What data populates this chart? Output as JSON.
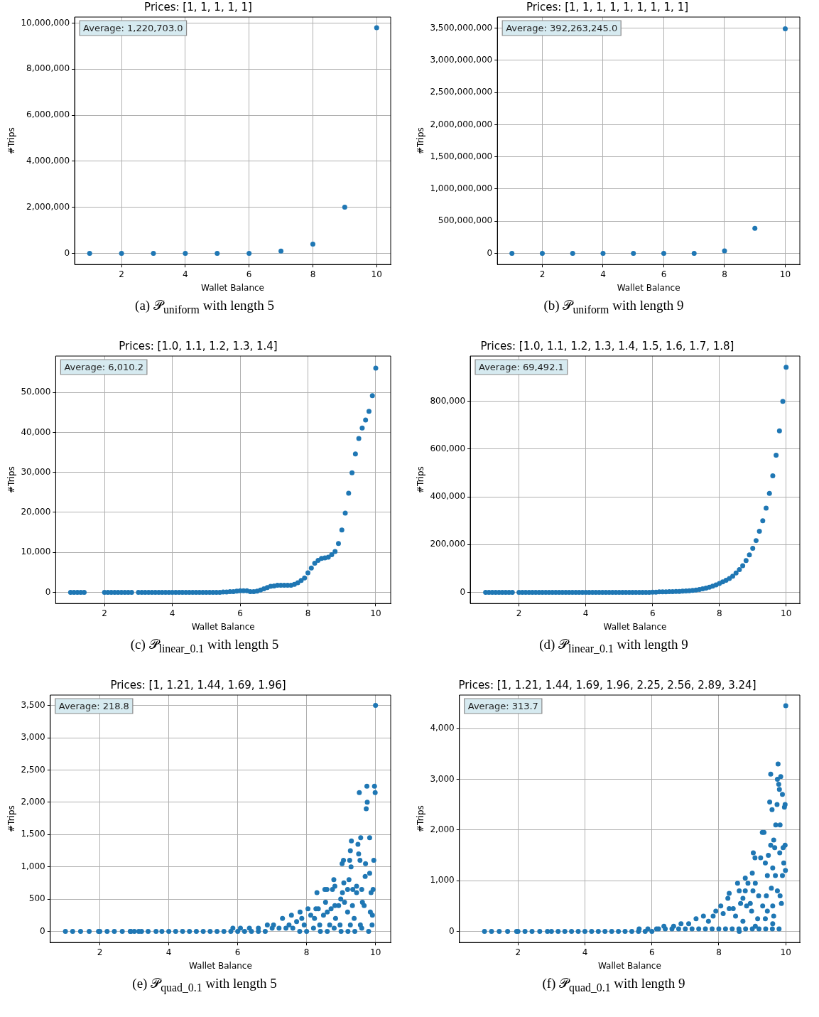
{
  "chart_data": [
    {
      "type": "scatter",
      "title": "Prices: [1, 1, 1, 1, 1]",
      "xlabel": "Wallet Balance",
      "ylabel": "#Trips",
      "color": "#1f77b4",
      "marker": "circle",
      "grid": true,
      "x": [
        1,
        2,
        3,
        4,
        5,
        6,
        7,
        8,
        9,
        10
      ],
      "values": [
        0,
        0,
        0,
        0,
        0,
        0,
        100000,
        400000,
        2000000,
        9800000
      ],
      "xlim": [
        0.53,
        10.44
      ],
      "xticks": [
        2,
        4,
        6,
        8,
        10
      ],
      "ylim": [
        -488000,
        10260000
      ],
      "yticks": [
        {
          "value": 0,
          "label": "0"
        },
        {
          "value": 2000000,
          "label": "2,000,000"
        },
        {
          "value": 4000000,
          "label": "4,000,000"
        },
        {
          "value": 6000000,
          "label": "6,000,000"
        },
        {
          "value": 8000000,
          "label": "8,000,000"
        },
        {
          "value": 10000000,
          "label": "10,000,000"
        }
      ],
      "annotations": [
        "Average: 1,220,703.0",
        "(a) 𝒫$_{uniform}$ with length 5"
      ]
    },
    {
      "type": "scatter",
      "title": "Prices: [1, 1, 1, 1, 1, 1, 1, 1, 1]",
      "xlabel": "Wallet Balance",
      "ylabel": "#Trips",
      "color": "#1f77b4",
      "marker": "circle",
      "grid": true,
      "x": [
        1,
        2,
        3,
        4,
        5,
        6,
        7,
        8,
        9,
        10
      ],
      "values": [
        0,
        0,
        0,
        0,
        0,
        0,
        0,
        40000000,
        390000000,
        3490000000
      ],
      "xlim": [
        0.52,
        10.48
      ],
      "xticks": [
        2,
        4,
        6,
        8,
        10
      ],
      "ylim": [
        -173000000,
        3672000000
      ],
      "yticks": [
        {
          "value": 0,
          "label": "0"
        },
        {
          "value": 500000000,
          "label": "500,000,000"
        },
        {
          "value": 1000000000,
          "label": "1,000,000,000"
        },
        {
          "value": 1500000000,
          "label": "1,500,000,000"
        },
        {
          "value": 2000000000,
          "label": "2,000,000,000"
        },
        {
          "value": 2500000000,
          "label": "2,500,000,000"
        },
        {
          "value": 3000000000,
          "label": "3,000,000,000"
        },
        {
          "value": 3500000000,
          "label": "3,500,000,000"
        }
      ],
      "annotations": [
        "Average: 392,263,245.0",
        "(b) 𝒫$_{uniform}$ with length 9"
      ]
    },
    {
      "type": "scatter",
      "title": "Prices: [1.0, 1.1, 1.2, 1.3, 1.4]",
      "xlabel": "Wallet Balance",
      "ylabel": "#Trips",
      "color": "#1f77b4",
      "marker": "circle",
      "grid": true,
      "x": [
        1,
        1.1,
        1.2,
        1.3,
        1.4,
        2,
        2.1,
        2.2,
        2.3,
        2.4,
        2.5,
        2.6,
        2.7,
        2.8,
        3,
        3.1,
        3.2,
        3.3,
        3.4,
        3.5,
        3.6,
        3.7,
        3.8,
        3.9,
        4,
        4.1,
        4.2,
        4.3,
        4.4,
        4.5,
        4.6,
        4.7,
        4.8,
        4.9,
        5,
        5.1,
        5.2,
        5.3,
        5.4,
        5.5,
        5.6,
        5.7,
        5.8,
        5.9,
        6,
        6.1,
        6.2,
        6.3,
        6.4,
        6.5,
        6.6,
        6.7,
        6.8,
        6.9,
        7,
        7.1,
        7.2,
        7.3,
        7.4,
        7.5,
        7.6,
        7.7,
        7.8,
        7.9,
        8,
        8.1,
        8.2,
        8.3,
        8.4,
        8.5,
        8.6,
        8.7,
        8.8,
        8.9,
        9,
        9.1,
        9.2,
        9.3,
        9.4,
        9.5,
        9.6,
        9.7,
        9.8,
        9.9,
        10
      ],
      "values": [
        0,
        0,
        0,
        0,
        0,
        0,
        0,
        0,
        0,
        0,
        0,
        0,
        0,
        0,
        0,
        0,
        0,
        0,
        0,
        0,
        0,
        0,
        0,
        0,
        0,
        0,
        0,
        0,
        0,
        0,
        0,
        0,
        0,
        0,
        0,
        0,
        0,
        0,
        0,
        100,
        100,
        200,
        200,
        300,
        400,
        400,
        400,
        200,
        200,
        300,
        600,
        900,
        1200,
        1500,
        1600,
        1800,
        1800,
        1800,
        1800,
        1800,
        2000,
        2400,
        3000,
        3600,
        4900,
        6100,
        7300,
        8000,
        8500,
        8600,
        8800,
        9400,
        10200,
        12200,
        15600,
        19800,
        24800,
        29900,
        34600,
        38500,
        41100,
        43100,
        45300,
        49200,
        56100
      ],
      "xlim": [
        0.56,
        10.44
      ],
      "xticks": [
        2,
        4,
        6,
        8,
        10
      ],
      "ylim": [
        -2790,
        59100
      ],
      "yticks": [
        {
          "value": 0,
          "label": "0"
        },
        {
          "value": 10000,
          "label": "10,000"
        },
        {
          "value": 20000,
          "label": "20,000"
        },
        {
          "value": 30000,
          "label": "30,000"
        },
        {
          "value": 40000,
          "label": "40,000"
        },
        {
          "value": 50000,
          "label": "50,000"
        }
      ],
      "annotations": [
        "Average: 6,010.2",
        "(c) 𝒫$_{linear_0.1}$ with length 5"
      ]
    },
    {
      "type": "scatter",
      "title": "Prices: [1.0, 1.1, 1.2, 1.3, 1.4, 1.5, 1.6, 1.7, 1.8]",
      "xlabel": "Wallet Balance",
      "ylabel": "#Trips",
      "color": "#1f77b4",
      "marker": "circle",
      "grid": true,
      "x": [
        1,
        1.1,
        1.2,
        1.3,
        1.4,
        1.5,
        1.6,
        1.7,
        1.8,
        2,
        2.1,
        2.2,
        2.3,
        2.4,
        2.5,
        2.6,
        2.7,
        2.8,
        2.9,
        3,
        3.1,
        3.2,
        3.3,
        3.4,
        3.5,
        3.6,
        3.7,
        3.8,
        3.9,
        4,
        4.1,
        4.2,
        4.3,
        4.4,
        4.5,
        4.6,
        4.7,
        4.8,
        4.9,
        5,
        5.1,
        5.2,
        5.3,
        5.4,
        5.5,
        5.6,
        5.7,
        5.8,
        5.9,
        6,
        6.1,
        6.2,
        6.3,
        6.4,
        6.5,
        6.6,
        6.7,
        6.8,
        6.9,
        7,
        7.1,
        7.2,
        7.3,
        7.4,
        7.5,
        7.6,
        7.7,
        7.8,
        7.9,
        8,
        8.1,
        8.2,
        8.3,
        8.4,
        8.5,
        8.6,
        8.7,
        8.8,
        8.9,
        9,
        9.1,
        9.2,
        9.3,
        9.4,
        9.5,
        9.6,
        9.7,
        9.8,
        9.9,
        10
      ],
      "values": [
        0,
        0,
        0,
        0,
        0,
        0,
        0,
        0,
        0,
        0,
        0,
        0,
        0,
        0,
        0,
        0,
        0,
        0,
        0,
        0,
        0,
        0,
        0,
        0,
        0,
        0,
        0,
        0,
        0,
        0,
        0,
        0,
        0,
        0,
        0,
        0,
        0,
        0,
        0,
        0,
        0,
        0,
        0,
        0,
        0,
        0,
        0,
        0,
        0,
        1000,
        1000,
        2000,
        2000,
        2000,
        3000,
        3000,
        4000,
        4000,
        5000,
        6000,
        7000,
        8000,
        10000,
        12000,
        15000,
        18000,
        22000,
        26000,
        31000,
        37000,
        44000,
        51000,
        58000,
        68000,
        81000,
        95000,
        112000,
        133000,
        157000,
        185000,
        217000,
        256000,
        300000,
        353000,
        415000,
        488000,
        575000,
        677000,
        800000,
        943000
      ],
      "xlim": [
        0.54,
        10.41
      ],
      "xticks": [
        2,
        4,
        6,
        8,
        10
      ],
      "ylim": [
        -46700,
        990000
      ],
      "yticks": [
        {
          "value": 0,
          "label": "0"
        },
        {
          "value": 200000,
          "label": "200,000"
        },
        {
          "value": 400000,
          "label": "400,000"
        },
        {
          "value": 600000,
          "label": "600,000"
        },
        {
          "value": 800000,
          "label": "800,000"
        }
      ],
      "annotations": [
        "Average: 69,492.1",
        "(d) 𝒫$_{linear_0.1}$ with length 9"
      ]
    },
    {
      "type": "scatter",
      "title": "Prices: [1, 1.21, 1.44, 1.69, 1.96]",
      "xlabel": "Wallet Balance",
      "ylabel": "#Trips",
      "color": "#1f77b4",
      "marker": "circle",
      "grid": true,
      "x": [
        1,
        1.21,
        1.44,
        1.69,
        1.96,
        2,
        2.21,
        2.42,
        2.65,
        2.88,
        2.9,
        3,
        3.13,
        3.21,
        3.4,
        3.63,
        3.8,
        4,
        4.2,
        4.4,
        4.6,
        4.8,
        5,
        5.2,
        5.4,
        5.6,
        5.8,
        6,
        6.2,
        6.4,
        6.6,
        6.8,
        7,
        7.2,
        7.4,
        7.6,
        7.8,
        8,
        8.2,
        8.4,
        8.6,
        8.8,
        9,
        9.2,
        9.4,
        9.6,
        9.8,
        10,
        9.97,
        9.99,
        9.75,
        9.53,
        9.76,
        9.73,
        9.57,
        9.3,
        9.83,
        9.49,
        9.27,
        9.51,
        9.03,
        9.07,
        9.25,
        9.29,
        9.55,
        9.71,
        9.95,
        9.83,
        9.7,
        8.79,
        9.23,
        8.53,
        8.59,
        8.75,
        8.82,
        9.08,
        9.19,
        9.34,
        9.45,
        9.45,
        9.6,
        9.93,
        8.3,
        8.99,
        9.04,
        9.87,
        8.55,
        8.71,
        8.82,
        8.93,
        9.1,
        9.33,
        9.62,
        9.67,
        8.04,
        8.27,
        8.34,
        8.49,
        8.6,
        9.19,
        9.85,
        9.91,
        7.81,
        7.56,
        7.3,
        7.86,
        8.12,
        8.23,
        8.84,
        9.38,
        7.04,
        6.86,
        6.6,
        6.34,
        5.86,
        6.08,
        7.49,
        7.71,
        7.93,
        8.38,
        8.67,
        8.97,
        9.27,
        9.56,
        9.9
      ],
      "values": [
        0,
        0,
        0,
        0,
        0,
        0,
        0,
        0,
        0,
        0,
        0,
        0,
        0,
        0,
        0,
        0,
        0,
        0,
        0,
        0,
        0,
        0,
        0,
        0,
        0,
        0,
        0,
        0,
        0,
        0,
        0,
        0,
        50,
        50,
        50,
        50,
        0,
        0,
        50,
        0,
        0,
        50,
        0,
        0,
        0,
        50,
        0,
        3500,
        2250,
        2150,
        2250,
        2150,
        2000,
        1900,
        1450,
        1400,
        1450,
        1350,
        1250,
        1200,
        1050,
        1100,
        1100,
        1000,
        1100,
        1050,
        1100,
        900,
        850,
        800,
        800,
        650,
        650,
        650,
        700,
        750,
        650,
        650,
        700,
        600,
        650,
        650,
        600,
        500,
        600,
        600,
        450,
        350,
        400,
        400,
        450,
        400,
        450,
        400,
        350,
        350,
        350,
        250,
        300,
        300,
        300,
        250,
        300,
        250,
        200,
        200,
        250,
        200,
        200,
        200,
        100,
        100,
        50,
        50,
        50,
        50,
        100,
        150,
        100,
        100,
        100,
        100,
        100,
        100,
        100
      ],
      "xlim": [
        0.56,
        10.44
      ],
      "xticks": [
        2,
        4,
        6,
        8,
        10
      ],
      "ylim": [
        -173,
        3661
      ],
      "yticks": [
        {
          "value": 0,
          "label": "0"
        },
        500,
        {
          "value": 1000,
          "label": "1,000"
        },
        {
          "value": 1500,
          "label": "1,500"
        },
        {
          "value": 2000,
          "label": "2,000"
        },
        {
          "value": 2500,
          "label": "2,500"
        },
        {
          "value": 3000,
          "label": "3,000"
        },
        {
          "value": 3500,
          "label": "3,500"
        }
      ],
      "annotations": [
        "Average: 218.8",
        "(e) 𝒫$_{quad_0.1}$ with length 5"
      ]
    },
    {
      "type": "scatter",
      "title": "Prices: [1, 1.21, 1.44, 1.69, 1.96, 2.25, 2.56, 2.89, 3.24]",
      "xlabel": "Wallet Balance",
      "ylabel": "#Trips",
      "color": "#1f77b4",
      "marker": "circle",
      "grid": true,
      "x": [
        1,
        1.21,
        1.44,
        1.69,
        1.96,
        2,
        2.21,
        2.42,
        2.65,
        2.88,
        3,
        3.2,
        3.4,
        3.6,
        3.8,
        4,
        4.2,
        4.4,
        4.6,
        4.8,
        5,
        5.2,
        5.4,
        5.6,
        5.8,
        6,
        6.2,
        6.4,
        6.6,
        6.8,
        7,
        7.2,
        7.4,
        7.6,
        7.8,
        8,
        8.2,
        8.4,
        8.6,
        8.8,
        9,
        9.2,
        9.4,
        9.6,
        9.8,
        10,
        9.77,
        9.55,
        9.75,
        9.85,
        9.79,
        9.81,
        9.9,
        9.52,
        9.74,
        9.59,
        9.98,
        9.96,
        9.7,
        9.83,
        9.3,
        9.35,
        9.64,
        9.55,
        9.98,
        9.67,
        9.92,
        9.03,
        9.08,
        9.25,
        9.48,
        9.82,
        9.39,
        9.61,
        9.94,
        9.99,
        9,
        8.79,
        8.87,
        9.45,
        9.69,
        9.9,
        8.56,
        9.09,
        9.57,
        9.75,
        9.02,
        8.79,
        8.31,
        8.61,
        8.27,
        8.72,
        9.19,
        9.42,
        9.83,
        8.94,
        8.65,
        9.87,
        8.43,
        8.83,
        9.31,
        9.61,
        8.06,
        7.91,
        8.31,
        8.98,
        9.45,
        9.64,
        7.83,
        8.13,
        8.5,
        9.16,
        9.39,
        9.61,
        7.32,
        7.54,
        7.69,
        8.72,
        9.09,
        8.61,
        7.1,
        6.87,
        6.65,
        6.36,
        6.14,
        5.88,
        5.62
      ],
      "values": [
        0,
        0,
        0,
        0,
        0,
        0,
        0,
        0,
        0,
        0,
        0,
        0,
        0,
        0,
        0,
        0,
        0,
        0,
        0,
        0,
        0,
        0,
        0,
        0,
        0,
        0,
        50,
        50,
        50,
        50,
        50,
        50,
        50,
        50,
        50,
        50,
        50,
        50,
        50,
        50,
        50,
        50,
        50,
        50,
        50,
        4450,
        3300,
        3100,
        3000,
        3050,
        2900,
        2800,
        2700,
        2550,
        2500,
        2400,
        2500,
        2450,
        2100,
        2100,
        1950,
        1950,
        1800,
        1700,
        1700,
        1650,
        1650,
        1550,
        1450,
        1450,
        1500,
        1550,
        1350,
        1250,
        1350,
        1200,
        1150,
        1050,
        950,
        1100,
        1100,
        1100,
        950,
        950,
        850,
        800,
        800,
        800,
        750,
        800,
        650,
        650,
        700,
        700,
        700,
        550,
        550,
        550,
        450,
        500,
        500,
        500,
        500,
        400,
        450,
        400,
        400,
        300,
        300,
        350,
        300,
        250,
        250,
        150,
        250,
        300,
        200,
        200,
        100,
        0,
        150,
        150,
        100,
        100,
        50,
        50,
        50
      ],
      "xlim": [
        0.25,
        10.42
      ],
      "xticks": [
        2,
        4,
        6,
        8,
        10
      ],
      "ylim": [
        -220,
        4659
      ],
      "yticks": [
        {
          "value": 0,
          "label": "0"
        },
        {
          "value": 1000,
          "label": "1,000"
        },
        {
          "value": 2000,
          "label": "2,000"
        },
        {
          "value": 3000,
          "label": "3,000"
        },
        {
          "value": 4000,
          "label": "4,000"
        }
      ],
      "annotations": [
        "Average: 313.7",
        "(f) 𝒫$_{quad_0.1}$ with length 9"
      ]
    }
  ]
}
